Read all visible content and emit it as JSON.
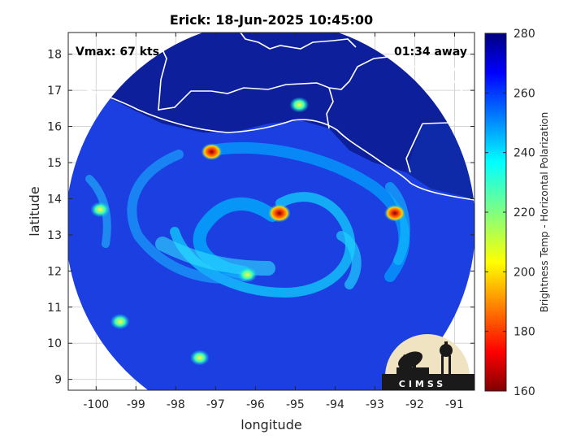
{
  "chart_data": {
    "type": "heatmap",
    "title": "Erick: 18-Jun-2025 10:45:00",
    "xlabel": "longitude",
    "ylabel": "latitude",
    "xlim": [
      -100.7,
      -90.5
    ],
    "ylim": [
      8.7,
      18.6
    ],
    "x_ticks": [
      -100,
      -99,
      -98,
      -97,
      -96,
      -95,
      -94,
      -93,
      -92,
      -91
    ],
    "y_ticks": [
      9,
      10,
      11,
      12,
      13,
      14,
      15,
      16,
      17,
      18
    ],
    "grid": true,
    "storm_center": {
      "lon": -95.4,
      "lat": 13.6
    },
    "colorbar": {
      "label": "Brightness Temp - Horizontal Polarization",
      "range": [
        160,
        280
      ],
      "ticks": [
        160,
        180,
        200,
        220,
        240,
        260,
        280
      ],
      "colormap": "jet",
      "location": "right"
    },
    "annotations": {
      "vmax": "Vmax: 67 kts",
      "time_away": "01:34 away"
    },
    "cold_cores": [
      {
        "lon": -95.4,
        "lat": 13.6,
        "tb": 175
      },
      {
        "lon": -97.1,
        "lat": 15.3,
        "tb": 180
      },
      {
        "lon": -94.9,
        "lat": 16.6,
        "tb": 210
      },
      {
        "lon": -92.5,
        "lat": 13.6,
        "tb": 195
      },
      {
        "lon": -96.2,
        "lat": 11.9,
        "tb": 205
      },
      {
        "lon": -97.4,
        "lat": 9.6,
        "tb": 225
      },
      {
        "lon": -99.9,
        "lat": 13.7,
        "tb": 215
      },
      {
        "lon": -99.4,
        "lat": 10.6,
        "tb": 228
      }
    ]
  },
  "logo": {
    "text": "CIMSS",
    "icon": "cimss-logo"
  },
  "colors": {
    "frame": "#000000",
    "coast": "#ffffff",
    "grid": "#d6d6d6"
  }
}
